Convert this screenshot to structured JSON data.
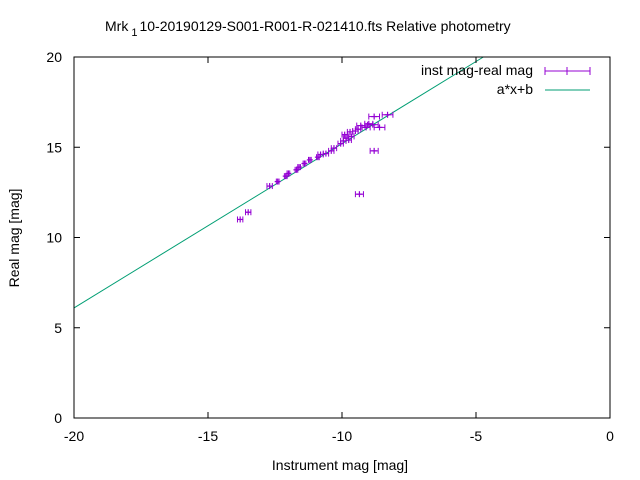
{
  "chart_data": {
    "type": "scatter",
    "title_main": "Mrk",
    "title_sub": "1",
    "title_rest": "10-20190129-S001-R001-R-021410.fts Relative photometry",
    "xlabel": "Instrument mag [mag]",
    "ylabel": "Real mag [mag]",
    "xlim": [
      -20,
      0
    ],
    "ylim": [
      0,
      20
    ],
    "xticks": [
      -20,
      -15,
      -10,
      -5,
      0
    ],
    "yticks": [
      0,
      5,
      10,
      15,
      20
    ],
    "grid": false,
    "legend_position": "top-right",
    "colors": {
      "points": "#9400d3",
      "fit": "#009e73"
    },
    "series": [
      {
        "name": "inst mag-real mag",
        "kind": "errorbar-points",
        "points": [
          {
            "x": -13.8,
            "y": 11.0,
            "xerr": 0.1
          },
          {
            "x": -13.5,
            "y": 11.4,
            "xerr": 0.1
          },
          {
            "x": -12.7,
            "y": 12.85,
            "xerr": 0.1
          },
          {
            "x": -12.4,
            "y": 13.1,
            "xerr": 0.05
          },
          {
            "x": -12.1,
            "y": 13.4,
            "xerr": 0.05
          },
          {
            "x": -12.0,
            "y": 13.55,
            "xerr": 0.05
          },
          {
            "x": -11.7,
            "y": 13.75,
            "xerr": 0.05
          },
          {
            "x": -11.6,
            "y": 13.9,
            "xerr": 0.05
          },
          {
            "x": -11.4,
            "y": 14.1,
            "xerr": 0.05
          },
          {
            "x": -11.2,
            "y": 14.3,
            "xerr": 0.05
          },
          {
            "x": -10.9,
            "y": 14.45,
            "xerr": 0.05
          },
          {
            "x": -10.8,
            "y": 14.6,
            "xerr": 0.1
          },
          {
            "x": -10.6,
            "y": 14.65,
            "xerr": 0.1
          },
          {
            "x": -10.4,
            "y": 14.8,
            "xerr": 0.1
          },
          {
            "x": -10.3,
            "y": 14.95,
            "xerr": 0.1
          },
          {
            "x": -10.05,
            "y": 15.2,
            "xerr": 0.1
          },
          {
            "x": -9.95,
            "y": 15.35,
            "xerr": 0.1
          },
          {
            "x": -9.85,
            "y": 15.5,
            "xerr": 0.1
          },
          {
            "x": -9.75,
            "y": 15.4,
            "xerr": 0.1
          },
          {
            "x": -9.65,
            "y": 15.6,
            "xerr": 0.1
          },
          {
            "x": -9.9,
            "y": 15.7,
            "xerr": 0.1
          },
          {
            "x": -9.7,
            "y": 15.85,
            "xerr": 0.1
          },
          {
            "x": -9.5,
            "y": 15.9,
            "xerr": 0.1
          },
          {
            "x": -9.4,
            "y": 16.0,
            "xerr": 0.1
          },
          {
            "x": -9.3,
            "y": 16.2,
            "xerr": 0.15
          },
          {
            "x": -9.1,
            "y": 16.1,
            "xerr": 0.15
          },
          {
            "x": -9.0,
            "y": 16.3,
            "xerr": 0.15
          },
          {
            "x": -8.85,
            "y": 16.25,
            "xerr": 0.2
          },
          {
            "x": -8.6,
            "y": 16.1,
            "xerr": 0.2
          },
          {
            "x": -8.8,
            "y": 16.7,
            "xerr": 0.2
          },
          {
            "x": -8.3,
            "y": 16.8,
            "xerr": 0.2
          },
          {
            "x": -8.8,
            "y": 14.8,
            "xerr": 0.15
          },
          {
            "x": -9.35,
            "y": 12.4,
            "xerr": 0.15
          }
        ]
      },
      {
        "name": "a*x+b",
        "kind": "line",
        "slope": 0.91,
        "intercept": 24.3
      }
    ]
  }
}
